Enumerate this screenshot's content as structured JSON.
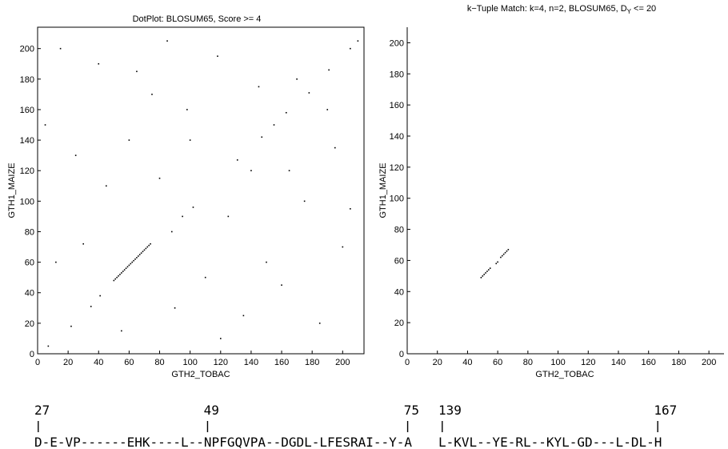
{
  "chart_data": [
    {
      "type": "scatter",
      "title": "DotPlot: BLOSUM65, Score >= 4",
      "xlabel": "GTH2_TOBAC",
      "ylabel": "GTH1_MAIZE",
      "xlim": [
        0,
        214
      ],
      "ylim": [
        0,
        214
      ],
      "xticks": [
        0,
        20,
        40,
        60,
        80,
        100,
        120,
        140,
        160,
        180,
        200
      ],
      "yticks": [
        0,
        20,
        40,
        60,
        80,
        100,
        120,
        140,
        160,
        180,
        200
      ],
      "grid": false,
      "points": [
        [
          50,
          48
        ],
        [
          51,
          49
        ],
        [
          52,
          50
        ],
        [
          53,
          51
        ],
        [
          54,
          52
        ],
        [
          55,
          53
        ],
        [
          56,
          54
        ],
        [
          57,
          55
        ],
        [
          58,
          56
        ],
        [
          59,
          57
        ],
        [
          60,
          58
        ],
        [
          61,
          59
        ],
        [
          62,
          60
        ],
        [
          63,
          61
        ],
        [
          64,
          62
        ],
        [
          65,
          63
        ],
        [
          66,
          64
        ],
        [
          67,
          65
        ],
        [
          68,
          66
        ],
        [
          69,
          67
        ],
        [
          70,
          68
        ],
        [
          71,
          69
        ],
        [
          72,
          70
        ],
        [
          73,
          71
        ],
        [
          74,
          72
        ],
        [
          7,
          5
        ],
        [
          22,
          18
        ],
        [
          35,
          31
        ],
        [
          41,
          38
        ],
        [
          88,
          80
        ],
        [
          95,
          90
        ],
        [
          102,
          96
        ],
        [
          131,
          127
        ],
        [
          147,
          142
        ],
        [
          163,
          158
        ],
        [
          178,
          171
        ],
        [
          191,
          186
        ],
        [
          205,
          200
        ],
        [
          12,
          60
        ],
        [
          30,
          72
        ],
        [
          45,
          110
        ],
        [
          60,
          140
        ],
        [
          75,
          170
        ],
        [
          90,
          30
        ],
        [
          110,
          50
        ],
        [
          125,
          90
        ],
        [
          140,
          120
        ],
        [
          155,
          150
        ],
        [
          170,
          180
        ],
        [
          185,
          20
        ],
        [
          200,
          70
        ],
        [
          15,
          200
        ],
        [
          40,
          190
        ],
        [
          65,
          185
        ],
        [
          98,
          160
        ],
        [
          118,
          195
        ],
        [
          150,
          60
        ],
        [
          175,
          100
        ],
        [
          195,
          135
        ],
        [
          25,
          130
        ],
        [
          80,
          115
        ],
        [
          100,
          140
        ],
        [
          135,
          25
        ],
        [
          160,
          45
        ],
        [
          190,
          160
        ],
        [
          210,
          205
        ],
        [
          5,
          150
        ],
        [
          55,
          15
        ],
        [
          85,
          205
        ],
        [
          120,
          10
        ],
        [
          145,
          175
        ],
        [
          165,
          120
        ],
        [
          205,
          95
        ]
      ]
    },
    {
      "type": "scatter",
      "title": "k−Tuple Match: k=4, n=2, BLOSUM65, D",
      "title_sub": "Y",
      "title_tail": " <= 20",
      "xlabel": "GTH2_TOBAC",
      "ylabel": "GTH1_MAIZE",
      "xlim": [
        0,
        210
      ],
      "ylim": [
        0,
        210
      ],
      "xticks": [
        0,
        20,
        40,
        60,
        80,
        100,
        120,
        140,
        160,
        180,
        200
      ],
      "yticks": [
        0,
        20,
        40,
        60,
        80,
        100,
        120,
        140,
        160,
        180,
        200
      ],
      "grid": false,
      "points": [
        [
          49,
          49
        ],
        [
          50,
          50
        ],
        [
          51,
          51
        ],
        [
          52,
          52
        ],
        [
          53,
          53
        ],
        [
          54,
          54
        ],
        [
          55,
          55
        ],
        [
          59,
          58
        ],
        [
          60,
          59
        ],
        [
          62,
          62
        ],
        [
          63,
          63
        ],
        [
          64,
          64
        ],
        [
          65,
          65
        ],
        [
          66,
          66
        ],
        [
          67,
          67
        ]
      ]
    }
  ],
  "alignments": [
    {
      "markers": [
        {
          "label": "27",
          "char_index": 0
        },
        {
          "label": "49",
          "char_index": 22
        },
        {
          "label": "75",
          "char_index": 48
        }
      ],
      "sequence": "D-E-VP------EHK----L--NPFGQVPA--DGDL-LFESRAI--Y-A"
    },
    {
      "markers": [
        {
          "label": "139",
          "char_index": 0
        },
        {
          "label": "167",
          "char_index": 28
        }
      ],
      "sequence": "L-KVL--YE-RL--KYL-GD---L-DL-H"
    }
  ]
}
